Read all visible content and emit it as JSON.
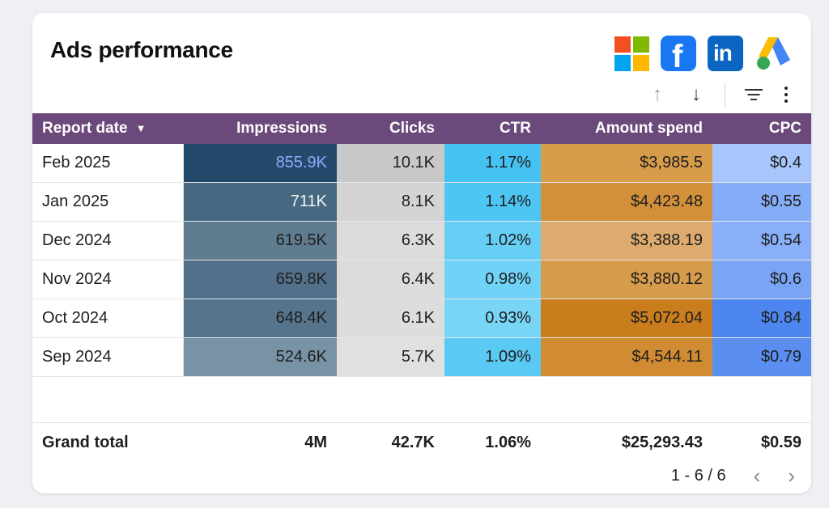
{
  "card": {
    "title": "Ads performance",
    "logos": [
      {
        "name": "microsoft",
        "colors": [
          "#f25022",
          "#7fba00",
          "#00a4ef",
          "#ffb900"
        ]
      },
      {
        "name": "facebook",
        "glyph": "f",
        "color": "#1877f2"
      },
      {
        "name": "linkedin",
        "glyph": "in",
        "color": "#0a66c2"
      },
      {
        "name": "google-ads",
        "colors": [
          "#fbbc04",
          "#4285f4",
          "#34a853"
        ]
      }
    ],
    "toolbar": {
      "sort_up": "↑",
      "sort_down": "↓",
      "filter": "filter",
      "more": "more"
    }
  },
  "table": {
    "columns": [
      "Report date",
      "Impressions",
      "Clicks",
      "CTR",
      "Amount spend",
      "CPC"
    ],
    "sort_indicator": "▼",
    "rows": [
      {
        "date": "Feb 2025",
        "impressions": "855.9K",
        "clicks": "10.1K",
        "ctr": "1.17%",
        "spend": "$3,985.5",
        "cpc": "$0.4"
      },
      {
        "date": "Jan 2025",
        "impressions": "711K",
        "clicks": "8.1K",
        "ctr": "1.14%",
        "spend": "$4,423.48",
        "cpc": "$0.55"
      },
      {
        "date": "Dec 2024",
        "impressions": "619.5K",
        "clicks": "6.3K",
        "ctr": "1.02%",
        "spend": "$3,388.19",
        "cpc": "$0.54"
      },
      {
        "date": "Nov 2024",
        "impressions": "659.8K",
        "clicks": "6.4K",
        "ctr": "0.98%",
        "spend": "$3,880.12",
        "cpc": "$0.6"
      },
      {
        "date": "Oct 2024",
        "impressions": "648.4K",
        "clicks": "6.1K",
        "ctr": "0.93%",
        "spend": "$5,072.04",
        "cpc": "$0.84"
      },
      {
        "date": "Sep 2024",
        "impressions": "524.6K",
        "clicks": "5.7K",
        "ctr": "1.09%",
        "spend": "$4,544.11",
        "cpc": "$0.79"
      }
    ],
    "total": {
      "label": "Grand total",
      "impressions": "4M",
      "clicks": "42.7K",
      "ctr": "1.06%",
      "spend": "$25,293.43",
      "cpc": "$0.59"
    }
  },
  "cell_colors": {
    "header": "#6b4a7b",
    "impressions": [
      "#234a6b",
      "#466880",
      "#5e7b90",
      "#52708a",
      "#56748c",
      "#7892a6"
    ],
    "impressions_text": [
      "#8fa8ff",
      "#f2f4f6",
      "#1e1e1e",
      "#1e1e1e",
      "#1e1e1e",
      "#1e1e1e"
    ],
    "clicks": [
      "#c8c8c8",
      "#d4d4d4",
      "#dcdcdc",
      "#dbdbdb",
      "#dddddd",
      "#e0e0e0"
    ],
    "ctr": [
      "#46c2f2",
      "#4ec6f3",
      "#67cef5",
      "#70d2f6",
      "#78d5f6",
      "#5acaf4"
    ],
    "spend": [
      "#d79c4a",
      "#d3903a",
      "#ddab6d",
      "#d79c4b",
      "#c97d1c",
      "#d18b33"
    ],
    "cpc": [
      "#a8c6fb",
      "#85adf7",
      "#88aff8",
      "#7aa5f5",
      "#4d86ee",
      "#5a8ff1"
    ]
  },
  "pager": {
    "range": "1 - 6 / 6",
    "prev": "‹",
    "next": "›"
  }
}
